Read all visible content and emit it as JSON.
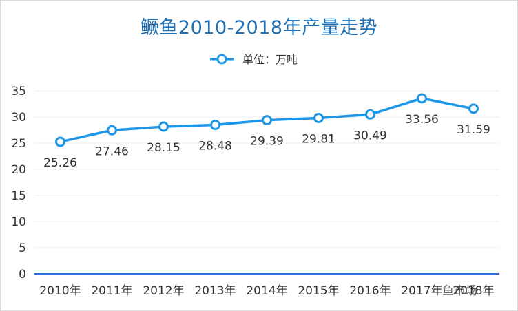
{
  "colors": {
    "line": "#1e96e8",
    "title": "#1f6fb2",
    "text": "#333333",
    "axis_gradient_top": "#d9312b",
    "axis_gradient_mid": "#f2b23a",
    "axis_gradient_bottom": "#2f6fd0"
  },
  "chart_data": {
    "type": "line",
    "title": "鳜鱼2010-2018年产量走势",
    "categories": [
      "2010年",
      "2011年",
      "2012年",
      "2013年",
      "2014年",
      "2015年",
      "2016年",
      "2017年",
      "2018年"
    ],
    "series": [
      {
        "name": "单位：万吨",
        "values": [
          25.26,
          27.46,
          28.15,
          28.48,
          29.39,
          29.81,
          30.49,
          33.56,
          31.59
        ]
      }
    ],
    "data_labels": [
      "25.26",
      "27.46",
      "28.15",
      "28.48",
      "29.39",
      "29.81",
      "30.49",
      "33.56",
      "31.59"
    ],
    "yticks": [
      "0",
      "5",
      "10",
      "15",
      "20",
      "25",
      "30",
      "35"
    ],
    "ylim": [
      0,
      35
    ],
    "grid": true,
    "legend_position": "top-center"
  },
  "watermark": "鱼市场"
}
